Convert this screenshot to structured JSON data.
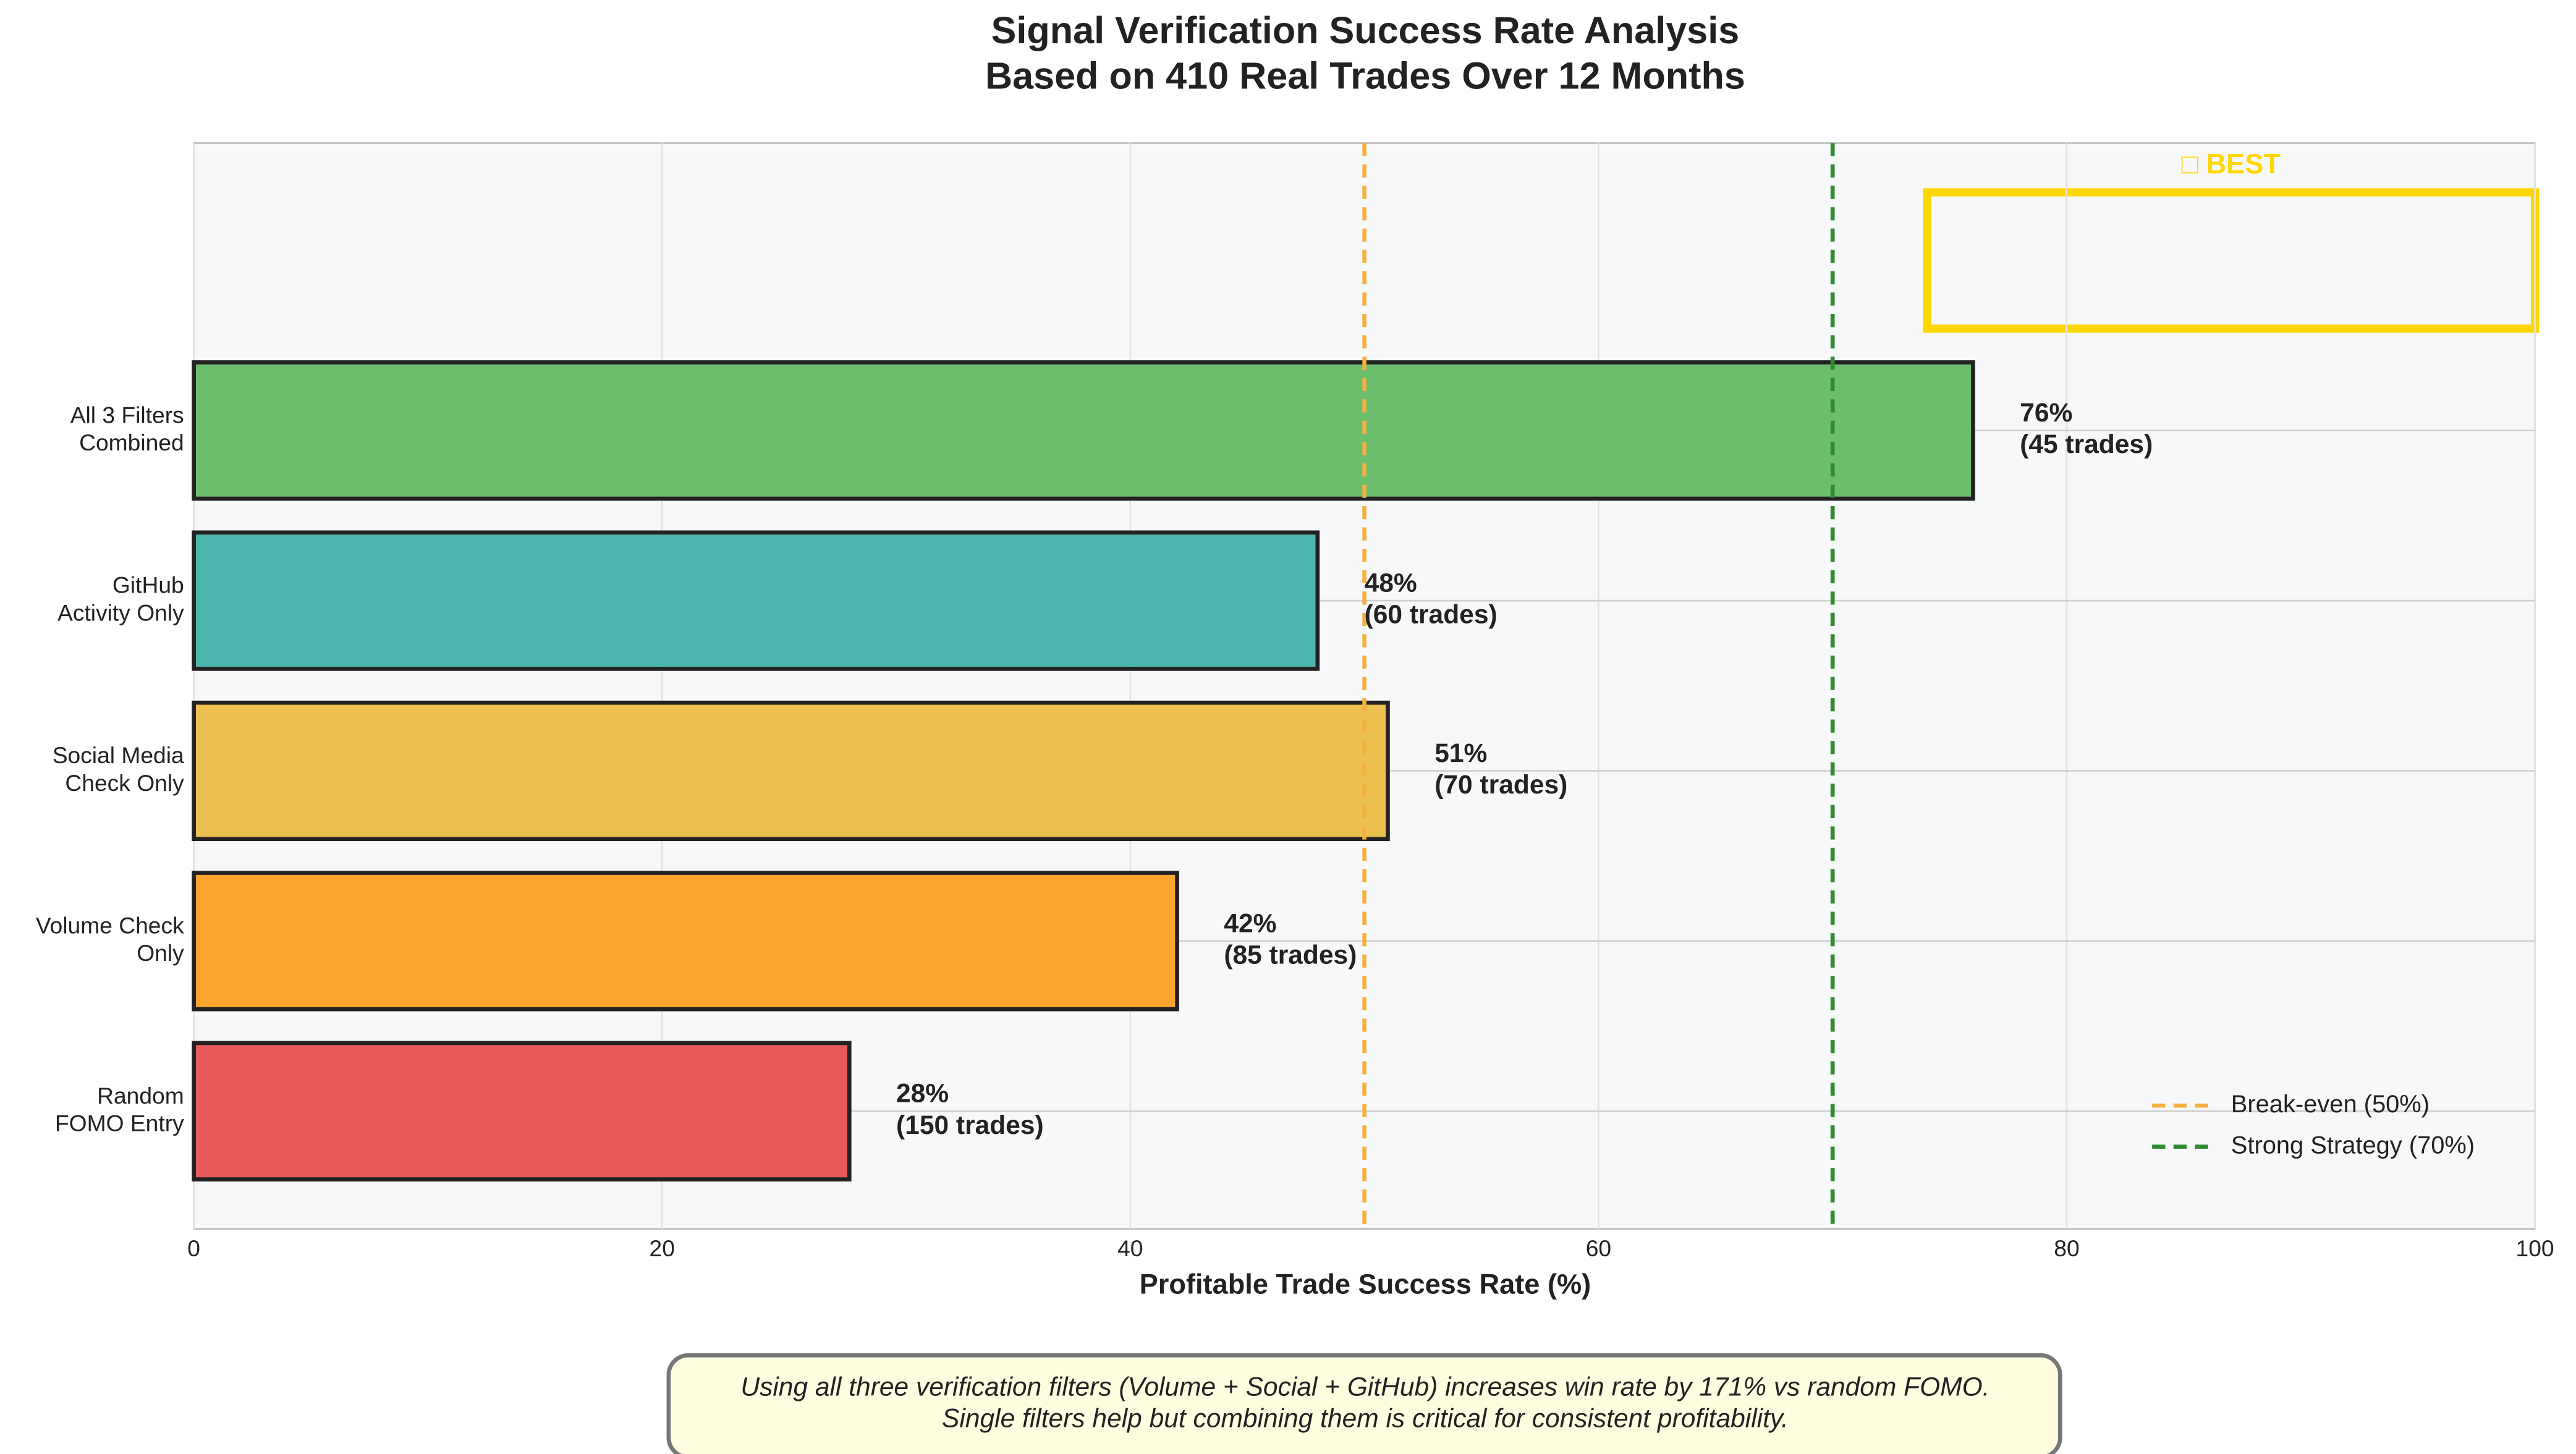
{
  "chart_data": {
    "type": "barh",
    "title": "Signal Verification Success Rate Analysis\nBased on 410 Real Trades Over 12 Months",
    "categories": [
      "All 3 Filters\nCombined",
      "GitHub\nActivity Only",
      "Social Media\nCheck Only",
      "Volume Check\nOnly",
      "Random\nFOMO Entry"
    ],
    "values": [
      76,
      48,
      51,
      42,
      28
    ],
    "value_labels": [
      "76%\n(45 trades)",
      "48%\n(60 trades)",
      "51%\n(70 trades)",
      "42%\n(85 trades)",
      "28%\n(150 trades)"
    ],
    "colors": [
      "#6dbd6f",
      "#4db6ac",
      "#ecc050",
      "#fba530",
      "#e85a5a"
    ],
    "xlabel": "Profitable Trade Success Rate (%)",
    "xlim": [
      0,
      100
    ],
    "xticks": [
      0,
      20,
      40,
      60,
      80,
      100
    ],
    "grid": true,
    "reference_lines": [
      {
        "name": "Break-even (50%)",
        "value": 50,
        "color": "#f5b041"
      },
      {
        "name": "Strong Strategy (70%)",
        "value": 70,
        "color": "#2e8b2e"
      }
    ],
    "legend": "lower right",
    "annotation": "□ BEST",
    "note": "Using all three verification filters (Volume + Social + GitHub) increases win rate by 171% vs random FOMO.\nSingle filters help but combining them is critical for consistent profitability."
  }
}
